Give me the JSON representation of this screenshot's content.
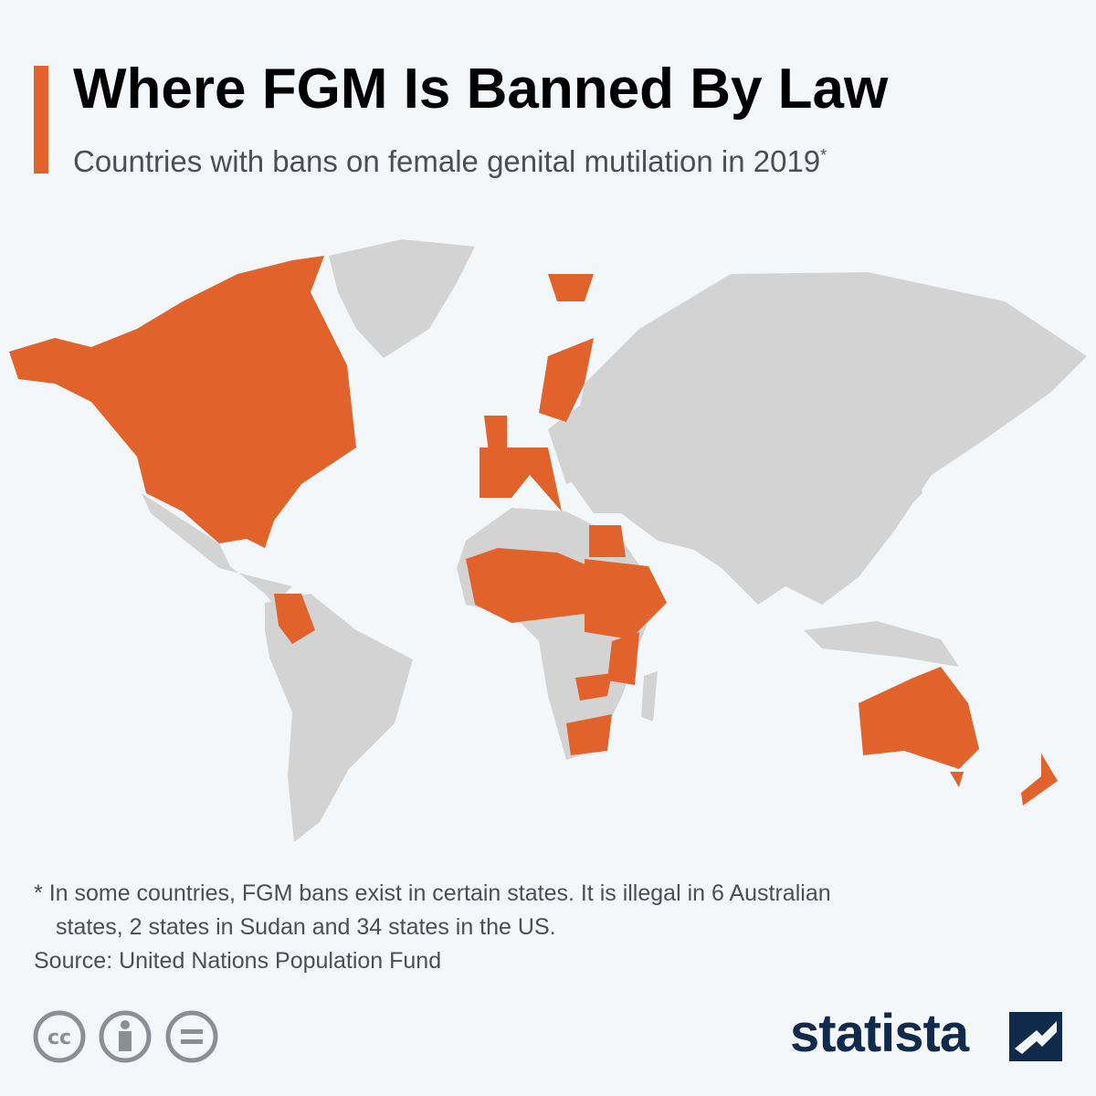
{
  "header": {
    "title": "Where FGM Is Banned By Law",
    "subtitle": "Countries with bans on female genital mutilation in 2019",
    "subtitle_mark": "*"
  },
  "footnote": {
    "marker": "*",
    "lines": [
      "In some countries, FGM bans exist in certain states. It is illegal in 6 Australian",
      "states, 2 states in Sudan and 34 states in the US."
    ]
  },
  "source": "Source: United Nations Population Fund",
  "brand": "statista"
}
